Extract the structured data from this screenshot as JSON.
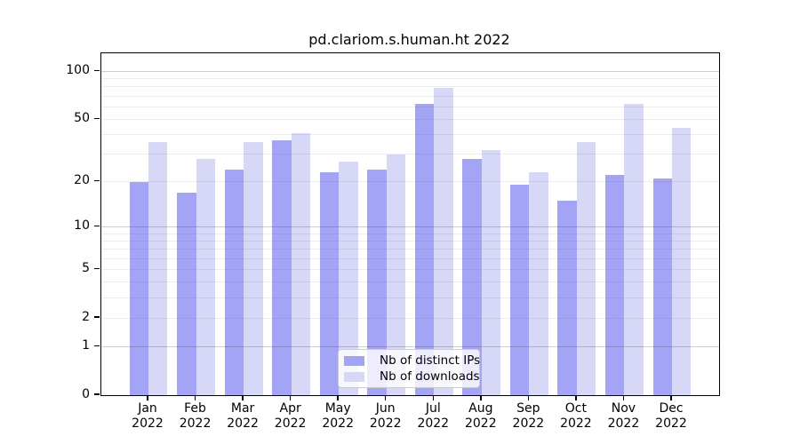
{
  "chart_data": {
    "type": "bar",
    "title": "pd.clariom.s.human.ht 2022",
    "categories": [
      "Jan",
      "Feb",
      "Mar",
      "Apr",
      "May",
      "Jun",
      "Jul",
      "Aug",
      "Sep",
      "Oct",
      "Nov",
      "Dec"
    ],
    "x_year_label": "2022",
    "series": [
      {
        "name": "Nb of distinct IPs",
        "color": "#a4a4f7",
        "values": [
          20,
          17,
          24,
          37,
          23,
          24,
          63,
          28,
          19,
          15,
          22,
          21
        ]
      },
      {
        "name": "Nb of downloads",
        "color": "#d7d7f8",
        "values": [
          36,
          28,
          36,
          41,
          27,
          30,
          79,
          32,
          23,
          36,
          63,
          44
        ]
      }
    ],
    "y_ticks": [
      0,
      1,
      2,
      5,
      10,
      20,
      50,
      100
    ],
    "y_scale": "log10(1+value)",
    "ylim": [
      0,
      130
    ],
    "grid": {
      "major": [
        1,
        10,
        100
      ],
      "minor": [
        2,
        3,
        4,
        5,
        6,
        7,
        8,
        9,
        20,
        30,
        40,
        50,
        60,
        70,
        80,
        90
      ]
    },
    "legend_position": "inside bottom, center-right",
    "xlabel": "",
    "ylabel": ""
  }
}
